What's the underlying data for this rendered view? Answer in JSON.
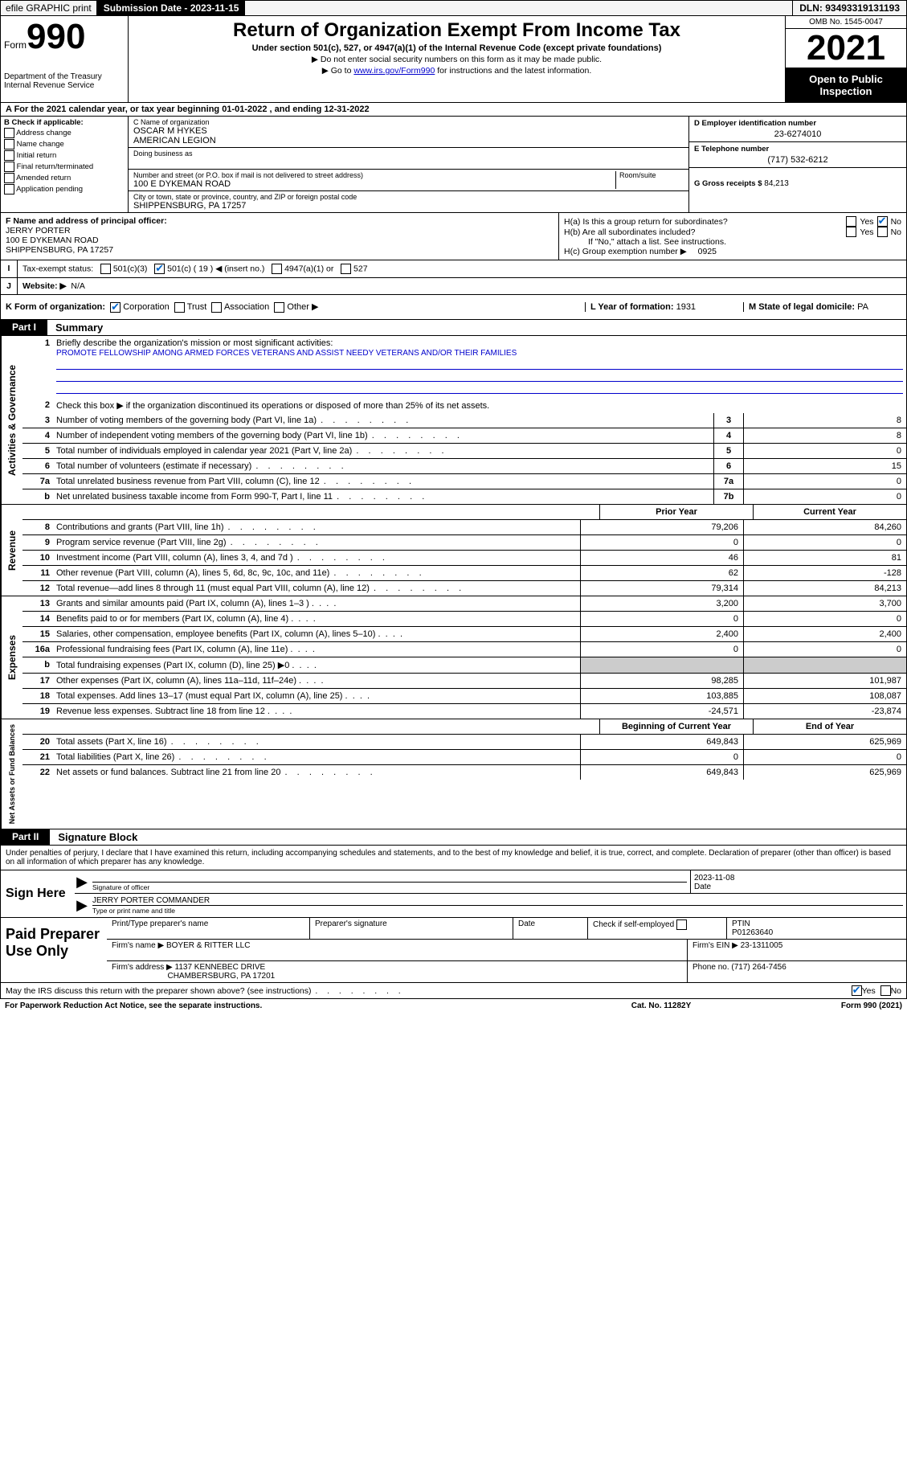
{
  "topbar": {
    "efile": "efile GRAPHIC print",
    "subdate_label": "Submission Date - 2023-11-15",
    "dln": "DLN: 93493319131193"
  },
  "header": {
    "form_prefix": "Form",
    "form_num": "990",
    "dept": "Department of the Treasury",
    "irs": "Internal Revenue Service",
    "title": "Return of Organization Exempt From Income Tax",
    "sub": "Under section 501(c), 527, or 4947(a)(1) of the Internal Revenue Code (except private foundations)",
    "note1": "Do not enter social security numbers on this form as it may be made public.",
    "note2_pre": "Go to ",
    "note2_link": "www.irs.gov/Form990",
    "note2_post": " for instructions and the latest information.",
    "omb": "OMB No. 1545-0047",
    "year": "2021",
    "inspection": "Open to Public Inspection"
  },
  "taxyear": "A For the 2021 calendar year, or tax year beginning 01-01-2022   , and ending 12-31-2022",
  "boxB": {
    "label": "B Check if applicable:",
    "items": [
      "Address change",
      "Name change",
      "Initial return",
      "Final return/terminated",
      "Amended return",
      "Application pending"
    ]
  },
  "boxC": {
    "name_lab": "C Name of organization",
    "name1": "OSCAR M HYKES",
    "name2": "AMERICAN LEGION",
    "dba_lab": "Doing business as",
    "addr_lab": "Number and street (or P.O. box if mail is not delivered to street address)",
    "room_lab": "Room/suite",
    "addr": "100 E DYKEMAN ROAD",
    "city_lab": "City or town, state or province, country, and ZIP or foreign postal code",
    "city": "SHIPPENSBURG, PA  17257"
  },
  "boxD": {
    "ein_lab": "D Employer identification number",
    "ein": "23-6274010",
    "phone_lab": "E Telephone number",
    "phone": "(717) 532-6212",
    "gross_lab": "G Gross receipts $",
    "gross": "84,213"
  },
  "boxF": {
    "lab": "F  Name and address of principal officer:",
    "name": "JERRY PORTER",
    "addr1": "100 E DYKEMAN ROAD",
    "addr2": "SHIPPENSBURG, PA  17257"
  },
  "boxH": {
    "ha": "H(a)  Is this a group return for subordinates?",
    "hb": "H(b)  Are all subordinates included?",
    "hb_note": "If \"No,\" attach a list. See instructions.",
    "hc": "H(c)  Group exemption number ▶",
    "hc_val": "0925",
    "yes": "Yes",
    "no": "No"
  },
  "rowI": {
    "lab": "Tax-exempt status:",
    "opt1": "501(c)(3)",
    "opt2": "501(c) ( 19 ) ◀ (insert no.)",
    "opt3": "4947(a)(1) or",
    "opt4": "527"
  },
  "rowJ": {
    "lab": "Website: ▶",
    "val": "N/A"
  },
  "rowK": {
    "lab": "K Form of organization:",
    "opts": [
      "Corporation",
      "Trust",
      "Association",
      "Other ▶"
    ],
    "l_lab": "L Year of formation:",
    "l_val": "1931",
    "m_lab": "M State of legal domicile:",
    "m_val": "PA"
  },
  "part1": {
    "label": "Part I",
    "title": "Summary"
  },
  "governance": {
    "side": "Activities & Governance",
    "r1_lab": "Briefly describe the organization's mission or most significant activities:",
    "r1_mission": "PROMOTE FELLOWSHIP AMONG ARMED FORCES VETERANS AND ASSIST NEEDY VETERANS AND/OR THEIR FAMILIES",
    "r2": "Check this box ▶        if the organization discontinued its operations or disposed of more than 25% of its net assets.",
    "rows": [
      {
        "n": "3",
        "d": "Number of voting members of the governing body (Part VI, line 1a)",
        "ref": "3",
        "v": "8"
      },
      {
        "n": "4",
        "d": "Number of independent voting members of the governing body (Part VI, line 1b)",
        "ref": "4",
        "v": "8"
      },
      {
        "n": "5",
        "d": "Total number of individuals employed in calendar year 2021 (Part V, line 2a)",
        "ref": "5",
        "v": "0"
      },
      {
        "n": "6",
        "d": "Total number of volunteers (estimate if necessary)",
        "ref": "6",
        "v": "15"
      },
      {
        "n": "7a",
        "d": "Total unrelated business revenue from Part VIII, column (C), line 12",
        "ref": "7a",
        "v": "0"
      },
      {
        "n": "b",
        "d": "Net unrelated business taxable income from Form 990-T, Part I, line 11",
        "ref": "7b",
        "v": "0"
      }
    ]
  },
  "revenue": {
    "side": "Revenue",
    "hdr_prior": "Prior Year",
    "hdr_curr": "Current Year",
    "rows": [
      {
        "n": "8",
        "d": "Contributions and grants (Part VIII, line 1h)",
        "p": "79,206",
        "c": "84,260"
      },
      {
        "n": "9",
        "d": "Program service revenue (Part VIII, line 2g)",
        "p": "0",
        "c": "0"
      },
      {
        "n": "10",
        "d": "Investment income (Part VIII, column (A), lines 3, 4, and 7d )",
        "p": "46",
        "c": "81"
      },
      {
        "n": "11",
        "d": "Other revenue (Part VIII, column (A), lines 5, 6d, 8c, 9c, 10c, and 11e)",
        "p": "62",
        "c": "-128"
      },
      {
        "n": "12",
        "d": "Total revenue—add lines 8 through 11 (must equal Part VIII, column (A), line 12)",
        "p": "79,314",
        "c": "84,213"
      }
    ]
  },
  "expenses": {
    "side": "Expenses",
    "rows": [
      {
        "n": "13",
        "d": "Grants and similar amounts paid (Part IX, column (A), lines 1–3 )",
        "p": "3,200",
        "c": "3,700"
      },
      {
        "n": "14",
        "d": "Benefits paid to or for members (Part IX, column (A), line 4)",
        "p": "0",
        "c": "0"
      },
      {
        "n": "15",
        "d": "Salaries, other compensation, employee benefits (Part IX, column (A), lines 5–10)",
        "p": "2,400",
        "c": "2,400"
      },
      {
        "n": "16a",
        "d": "Professional fundraising fees (Part IX, column (A), line 11e)",
        "p": "0",
        "c": "0"
      },
      {
        "n": "b",
        "d": "Total fundraising expenses (Part IX, column (D), line 25) ▶0",
        "p": "",
        "c": "",
        "shade": true
      },
      {
        "n": "17",
        "d": "Other expenses (Part IX, column (A), lines 11a–11d, 11f–24e)",
        "p": "98,285",
        "c": "101,987"
      },
      {
        "n": "18",
        "d": "Total expenses. Add lines 13–17 (must equal Part IX, column (A), line 25)",
        "p": "103,885",
        "c": "108,087"
      },
      {
        "n": "19",
        "d": "Revenue less expenses. Subtract line 18 from line 12",
        "p": "-24,571",
        "c": "-23,874"
      }
    ]
  },
  "netassets": {
    "side": "Net Assets or Fund Balances",
    "hdr_beg": "Beginning of Current Year",
    "hdr_end": "End of Year",
    "rows": [
      {
        "n": "20",
        "d": "Total assets (Part X, line 16)",
        "p": "649,843",
        "c": "625,969"
      },
      {
        "n": "21",
        "d": "Total liabilities (Part X, line 26)",
        "p": "0",
        "c": "0"
      },
      {
        "n": "22",
        "d": "Net assets or fund balances. Subtract line 21 from line 20",
        "p": "649,843",
        "c": "625,969"
      }
    ]
  },
  "part2": {
    "label": "Part II",
    "title": "Signature Block"
  },
  "sig": {
    "intro": "Under penalties of perjury, I declare that I have examined this return, including accompanying schedules and statements, and to the best of my knowledge and belief, it is true, correct, and complete. Declaration of preparer (other than officer) is based on all information of which preparer has any knowledge.",
    "sign_here": "Sign Here",
    "sig_officer_lab": "Signature of officer",
    "date": "2023-11-08",
    "date_lab": "Date",
    "name": "JERRY PORTER  COMMANDER",
    "name_lab": "Type or print name and title"
  },
  "prep": {
    "label": "Paid Preparer Use Only",
    "h_name": "Print/Type preparer's name",
    "h_sig": "Preparer's signature",
    "h_date": "Date",
    "h_check": "Check         if self-employed",
    "h_ptin": "PTIN",
    "ptin": "P01263640",
    "firm_lab": "Firm's name    ▶",
    "firm": "BOYER & RITTER LLC",
    "ein_lab": "Firm's EIN ▶",
    "ein": "23-1311005",
    "addr_lab": "Firm's address ▶",
    "addr1": "1137 KENNEBEC DRIVE",
    "addr2": "CHAMBERSBURG, PA  17201",
    "phone_lab": "Phone no.",
    "phone": "(717) 264-7456"
  },
  "footer": {
    "discuss": "May the IRS discuss this return with the preparer shown above? (see instructions)",
    "yes": "Yes",
    "no": "No",
    "paperwork": "For Paperwork Reduction Act Notice, see the separate instructions.",
    "cat": "Cat. No. 11282Y",
    "form": "Form 990 (2021)"
  }
}
